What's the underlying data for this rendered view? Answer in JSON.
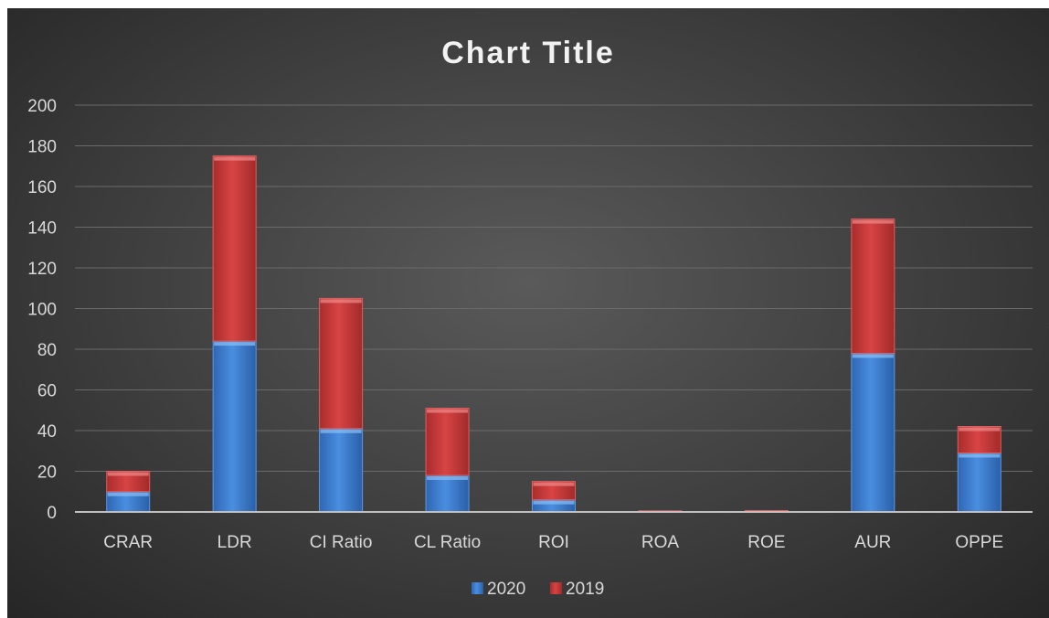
{
  "chart_data": {
    "type": "bar",
    "stacked": true,
    "title": "Chart Title",
    "xlabel": "",
    "ylabel": "",
    "categories": [
      "CRAR",
      "LDR",
      "CI Ratio",
      "CL Ratio",
      "ROI",
      "ROA",
      "ROE",
      "AUR",
      "OPPE"
    ],
    "series": [
      {
        "name": "2020",
        "color": "#3f7fd0",
        "values": [
          10,
          84,
          41,
          18,
          6,
          0.2,
          0.3,
          78,
          29
        ]
      },
      {
        "name": "2019",
        "color": "#c83a3a",
        "values": [
          10,
          91,
          64,
          33,
          9,
          0.3,
          0.4,
          66,
          13
        ]
      }
    ],
    "ylim": [
      0,
      200
    ],
    "yticks": [
      0,
      20,
      40,
      60,
      80,
      100,
      120,
      140,
      160,
      180,
      200
    ],
    "grid": true,
    "legend_position": "bottom"
  }
}
